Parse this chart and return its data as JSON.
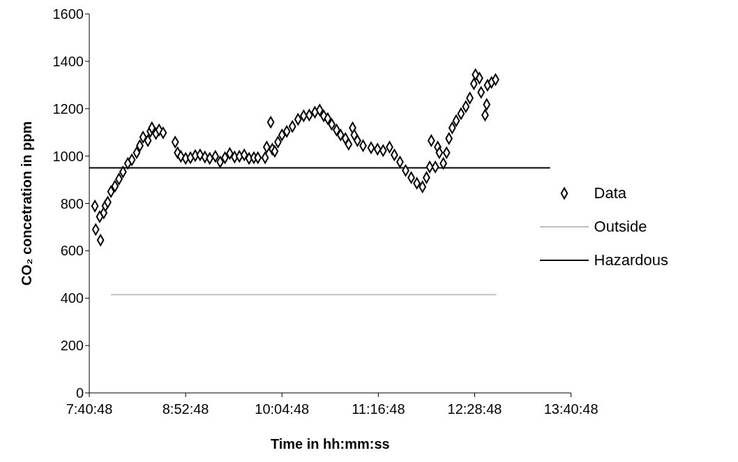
{
  "chart_data": {
    "type": "scatter",
    "xlabel": "Time in hh:mm:ss",
    "ylabel": "CO₂ concetration in ppm",
    "xlim": [
      7.68,
      13.68
    ],
    "xticks": [
      {
        "value": 7.68,
        "label": "7:40:48"
      },
      {
        "value": 8.88,
        "label": "8:52:48"
      },
      {
        "value": 10.08,
        "label": "10:04:48"
      },
      {
        "value": 11.28,
        "label": "11:16:48"
      },
      {
        "value": 12.48,
        "label": "12:28:48"
      },
      {
        "value": 13.68,
        "label": "13:40:48"
      }
    ],
    "ylim": [
      0,
      1600
    ],
    "yticks": [
      0,
      200,
      400,
      600,
      800,
      1000,
      1200,
      1400,
      1600
    ],
    "grid": false,
    "legend": "right",
    "series": [
      {
        "name": "Data",
        "color": "#000000",
        "marker": "diamond",
        "x": [
          7.75,
          7.76,
          7.81,
          7.82,
          7.86,
          7.88,
          7.91,
          7.95,
          8.0,
          8.05,
          8.1,
          8.16,
          8.21,
          8.27,
          8.31,
          8.35,
          8.41,
          8.44,
          8.46,
          8.51,
          8.55,
          8.6,
          8.75,
          8.78,
          8.82,
          8.88,
          8.94,
          9.0,
          9.06,
          9.12,
          9.18,
          9.25,
          9.31,
          9.37,
          9.43,
          9.49,
          9.55,
          9.61,
          9.67,
          9.73,
          9.78,
          9.87,
          9.89,
          9.94,
          9.96,
          9.99,
          10.03,
          10.08,
          10.14,
          10.21,
          10.28,
          10.35,
          10.42,
          10.49,
          10.55,
          10.6,
          10.65,
          10.7,
          10.76,
          10.81,
          10.87,
          10.91,
          10.96,
          10.98,
          11.02,
          11.09,
          11.19,
          11.27,
          11.34,
          11.42,
          11.48,
          11.55,
          11.62,
          11.69,
          11.76,
          11.83,
          11.88,
          11.92,
          11.94,
          11.99,
          12.02,
          12.04,
          12.09,
          12.13,
          12.16,
          12.2,
          12.25,
          12.31,
          12.37,
          12.42,
          12.47,
          12.49,
          12.54,
          12.56,
          12.61,
          12.63,
          12.64,
          12.69,
          12.74
        ],
        "values": [
          789,
          690,
          744,
          645,
          760,
          790,
          805,
          850,
          873,
          903,
          933,
          969,
          984,
          1014,
          1044,
          1080,
          1065,
          1104,
          1119,
          1095,
          1110,
          1098,
          1059,
          1014,
          999,
          990,
          993,
          1002,
          1005,
          996,
          990,
          999,
          975,
          993,
          1011,
          996,
          999,
          1005,
          990,
          993,
          993,
          993,
          1038,
          1143,
          1029,
          1020,
          1059,
          1089,
          1104,
          1125,
          1155,
          1170,
          1173,
          1185,
          1194,
          1170,
          1158,
          1134,
          1110,
          1089,
          1074,
          1050,
          1119,
          1089,
          1065,
          1044,
          1035,
          1029,
          1023,
          1038,
          1005,
          975,
          939,
          909,
          885,
          870,
          909,
          954,
          1065,
          954,
          1038,
          1014,
          969,
          1014,
          1074,
          1119,
          1149,
          1179,
          1209,
          1245,
          1305,
          1344,
          1329,
          1269,
          1173,
          1218,
          1299,
          1311,
          1323
        ]
      },
      {
        "name": "Outside",
        "type": "line",
        "color": "#c0c0c0",
        "marker": "none",
        "line_style": "solid",
        "x": [
          7.95,
          12.75
        ],
        "values": [
          415,
          415
        ]
      },
      {
        "name": "Hazardous",
        "type": "line",
        "color": "#000000",
        "marker": "none",
        "line_style": "solid",
        "x": [
          7.68,
          13.42
        ],
        "values": [
          950,
          950
        ]
      }
    ]
  }
}
